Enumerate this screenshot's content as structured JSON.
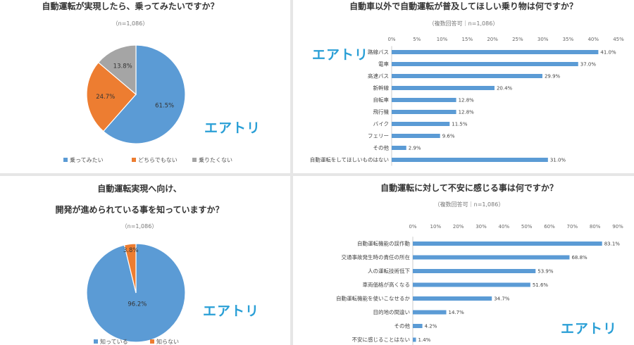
{
  "brand": {
    "name": "エアトリ",
    "color": "#2a9fd6"
  },
  "chart_data": [
    {
      "type": "pie",
      "title": "自動運転が実現したら、乗ってみたいですか？",
      "subtitle": "（n=1,086）",
      "slices": [
        {
          "label": "乗ってみたい",
          "value": 61.5,
          "display": "61.5%",
          "color": "#5b9bd5"
        },
        {
          "label": "どちらでもない",
          "value": 24.7,
          "display": "24.7%",
          "color": "#ed7d31"
        },
        {
          "label": "乗りたくない",
          "value": 13.8,
          "display": "13.8%",
          "color": "#a5a5a5"
        }
      ]
    },
    {
      "type": "bar",
      "orientation": "horizontal",
      "title": "自動車以外で自動運転が普及してほしい乗り物は何ですか？",
      "subtitle": "（複数回答可｜n=1,086）",
      "xlim": [
        0,
        45
      ],
      "ticks": [
        "0%",
        "5%",
        "10%",
        "15%",
        "20%",
        "25%",
        "30%",
        "35%",
        "40%",
        "45%"
      ],
      "categories": [
        "路線バス",
        "電車",
        "高速バス",
        "新幹線",
        "自転車",
        "飛行機",
        "バイク",
        "フェリー",
        "その他",
        "自動運転をしてほしいものはない"
      ],
      "values": [
        41.0,
        37.0,
        29.9,
        20.4,
        12.8,
        12.8,
        11.5,
        9.6,
        2.9,
        31.0
      ],
      "labels": [
        "41.0%",
        "37.0%",
        "29.9%",
        "20.4%",
        "12.8%",
        "12.8%",
        "11.5%",
        "9.6%",
        "2.9%",
        "31.0%"
      ],
      "color": "#5b9bd5"
    },
    {
      "type": "pie",
      "title": "自動運転実現へ向け、",
      "title2": "開発が進められている事を知っていますか？",
      "subtitle": "（n=1,086）",
      "slices": [
        {
          "label": "知っている",
          "value": 96.2,
          "display": "96.2%",
          "color": "#5b9bd5"
        },
        {
          "label": "知らない",
          "value": 3.8,
          "display": "3.8%",
          "color": "#ed7d31"
        }
      ]
    },
    {
      "type": "bar",
      "orientation": "horizontal",
      "title": "自動運転に対して不安に感じる事は何ですか？",
      "subtitle": "（複数回答可｜n=1,086）",
      "xlim": [
        0,
        90
      ],
      "ticks": [
        "0%",
        "10%",
        "20%",
        "30%",
        "40%",
        "50%",
        "60%",
        "70%",
        "80%",
        "90%"
      ],
      "categories": [
        "自動運転機能の誤作動",
        "交通事故発生時の責任の所在",
        "人の運転技術低下",
        "車両価格が高くなる",
        "自動運転機能を使いこなせるか",
        "目的地の間違い",
        "その他",
        "不安に感じることはない"
      ],
      "values": [
        83.1,
        68.8,
        53.9,
        51.6,
        34.7,
        14.7,
        4.2,
        1.4
      ],
      "labels": [
        "83.1%",
        "68.8%",
        "53.9%",
        "51.6%",
        "34.7%",
        "14.7%",
        "4.2%",
        "1.4%"
      ],
      "color": "#5b9bd5"
    }
  ]
}
